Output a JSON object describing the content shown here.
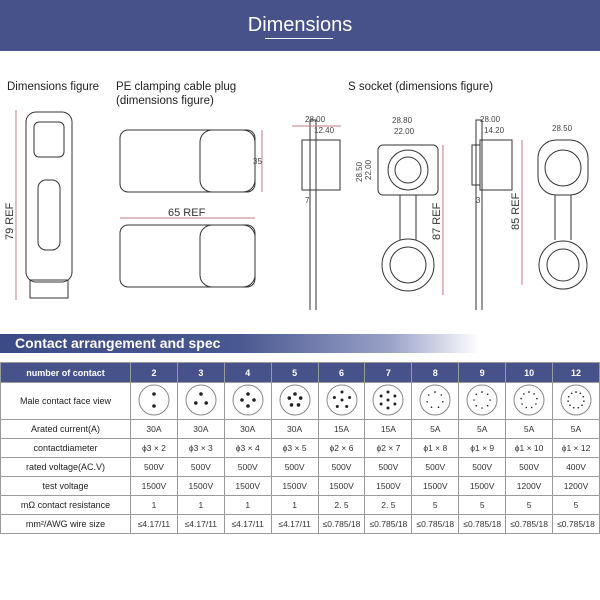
{
  "header": {
    "title": "Dimensions"
  },
  "figures": {
    "dimensions_figure": {
      "label": "Dimensions figure",
      "height": "79 REF"
    },
    "pe_plug": {
      "label_line1": "PE clamping cable plug",
      "label_line2": "(dimensions figure)",
      "height": "35",
      "length": "65 REF"
    },
    "s_socket": {
      "label": "S socket (dimensions figure)",
      "side1": {
        "top": "28.00",
        "inner": "12.40",
        "flange": "7"
      },
      "front1": {
        "width": "28.80",
        "inner_width": "22.00",
        "height": "28.50",
        "inner_height": "22.00",
        "total": "87 REF"
      },
      "side2": {
        "top": "28.00",
        "inner": "14.20",
        "flange": "3"
      },
      "front2": {
        "width": "28.50",
        "total": "85 REF"
      }
    }
  },
  "section": {
    "title": "Contact arrangement and spec"
  },
  "table": {
    "header_label": "number of contact",
    "contacts": [
      "2",
      "3",
      "4",
      "5",
      "6",
      "7",
      "8",
      "9",
      "10",
      "12"
    ],
    "face_view_label": "Male contact face view",
    "rows": [
      {
        "label": "Arated current(A)",
        "values": [
          "30A",
          "30A",
          "30A",
          "30A",
          "15A",
          "15A",
          "5A",
          "5A",
          "5A",
          "5A"
        ]
      },
      {
        "label": "contactdiameter",
        "values": [
          "ϕ3 × 2",
          "ϕ3 × 3",
          "ϕ3 × 4",
          "ϕ3 × 5",
          "ϕ2 × 6",
          "ϕ2 × 7",
          "ϕ1 × 8",
          "ϕ1 × 9",
          "ϕ1 × 10",
          "ϕ1 × 12"
        ]
      },
      {
        "label": "rated voltage(AC.V)",
        "values": [
          "500V",
          "500V",
          "500V",
          "500V",
          "500V",
          "500V",
          "500V",
          "500V",
          "500V",
          "400V"
        ]
      },
      {
        "label": "test voltage",
        "values": [
          "1500V",
          "1500V",
          "1500V",
          "1500V",
          "1500V",
          "1500V",
          "1500V",
          "1500V",
          "1200V",
          "1200V"
        ]
      },
      {
        "label": "mΩ contact resistance",
        "values": [
          "1",
          "1",
          "1",
          "1",
          "2. 5",
          "2. 5",
          "5",
          "5",
          "5",
          "5"
        ]
      },
      {
        "label": "mm²/AWG wire size",
        "values": [
          "≤4.17/11",
          "≤4.17/11",
          "≤4.17/11",
          "≤4.17/11",
          "≤0.785/18",
          "≤0.785/18",
          "≤0.785/18",
          "≤0.785/18",
          "≤0.785/18",
          "≤0.785/18"
        ]
      }
    ]
  },
  "colors": {
    "banner": "#47528a",
    "dimension_line": "#c77a86"
  }
}
